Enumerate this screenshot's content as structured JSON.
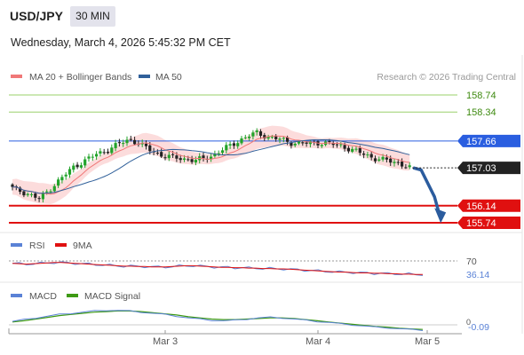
{
  "header": {
    "symbol": "USD/JPY",
    "interval": "30 MIN",
    "datetime": "Wednesday, March 4, 2026 5:45:32 PM CET"
  },
  "colors": {
    "candle_up": "#22a32a",
    "candle_down": "#222222",
    "ma20": "#f07878",
    "band_fill": "#fcdcdc",
    "ma50": "#30609a",
    "support": "#e01010",
    "resistance": "#9ad06a",
    "pivot": "#2a5ee0",
    "arrow": "#2b5c9e",
    "current_bg": "#222222",
    "rsi": "#5a82d6",
    "rsi_ma": "#e01010",
    "macd": "#5a82d6",
    "macd_signal": "#3e9a14"
  },
  "chart_data": {
    "type": "candlestick",
    "legend": [
      {
        "name": "MA 20 + Bollinger Bands",
        "color": "#f07878"
      },
      {
        "name": "MA 50",
        "color": "#30609a"
      }
    ],
    "credit": "Research © 2026 Trading Central",
    "y_range": [
      155.6,
      159.0
    ],
    "levels": [
      {
        "value": 158.74,
        "label": "158.74",
        "kind": "resistance"
      },
      {
        "value": 158.34,
        "label": "158.34",
        "kind": "resistance"
      },
      {
        "value": 157.66,
        "label": "157.66",
        "kind": "pivot"
      },
      {
        "value": 156.14,
        "label": "156.14",
        "kind": "support"
      },
      {
        "value": 155.74,
        "label": "155.74",
        "kind": "support"
      }
    ],
    "current_price": {
      "value": 157.03,
      "label": "157.03"
    },
    "arrow_path": [
      [
        0,
        157.03
      ],
      [
        3,
        156.98
      ],
      [
        8,
        156.35
      ],
      [
        10,
        155.9
      ]
    ],
    "x_labels": [
      {
        "index": 35,
        "label": "Mar 3"
      },
      {
        "index": 83,
        "label": "Mar 4"
      },
      {
        "index": 114,
        "label": "Mar 5"
      }
    ],
    "candles_count": 105,
    "close_anchors": [
      [
        0,
        156.55
      ],
      [
        4,
        156.42
      ],
      [
        7,
        156.3
      ],
      [
        10,
        156.55
      ],
      [
        13,
        156.8
      ],
      [
        16,
        157.05
      ],
      [
        19,
        157.2
      ],
      [
        22,
        157.35
      ],
      [
        25,
        157.45
      ],
      [
        28,
        157.6
      ],
      [
        31,
        157.7
      ],
      [
        34,
        157.55
      ],
      [
        37,
        157.4
      ],
      [
        40,
        157.3
      ],
      [
        44,
        157.25
      ],
      [
        48,
        157.2
      ],
      [
        52,
        157.3
      ],
      [
        55,
        157.45
      ],
      [
        58,
        157.6
      ],
      [
        61,
        157.75
      ],
      [
        64,
        157.85
      ],
      [
        67,
        157.75
      ],
      [
        70,
        157.7
      ],
      [
        73,
        157.62
      ],
      [
        76,
        157.6
      ],
      [
        80,
        157.62
      ],
      [
        83,
        157.6
      ],
      [
        86,
        157.55
      ],
      [
        89,
        157.45
      ],
      [
        92,
        157.35
      ],
      [
        95,
        157.25
      ],
      [
        98,
        157.2
      ],
      [
        101,
        157.15
      ],
      [
        104,
        157.03
      ]
    ],
    "rsi": {
      "label": "RSI",
      "ma_label": "9MA",
      "level_label": "70",
      "value_label": "36.14",
      "values": [
        64,
        63,
        62,
        63,
        64,
        65,
        66,
        66,
        65,
        64,
        63,
        62,
        61,
        60,
        59,
        58,
        57,
        57,
        56,
        56,
        55,
        55,
        55,
        56,
        57,
        58,
        58,
        57,
        56,
        55,
        54,
        54,
        53,
        53,
        52,
        52,
        51,
        51,
        50,
        50,
        49,
        48,
        47,
        46,
        45,
        44,
        43,
        42,
        42,
        41,
        40,
        40,
        39,
        39,
        38,
        38,
        37,
        37,
        36,
        36
      ]
    },
    "macd": {
      "label": "MACD",
      "signal_label": "MACD Signal",
      "zero_label": "0",
      "value_label": "-0.09",
      "macd": [
        0.06,
        0.09,
        0.12,
        0.15,
        0.18,
        0.2,
        0.22,
        0.24,
        0.25,
        0.25,
        0.24,
        0.22,
        0.2,
        0.18,
        0.15,
        0.12,
        0.1,
        0.08,
        0.07,
        0.08,
        0.1,
        0.12,
        0.13,
        0.12,
        0.1,
        0.08,
        0.06,
        0.04,
        0.02,
        0.0,
        -0.02,
        -0.04,
        -0.05,
        -0.07,
        -0.08,
        -0.09
      ],
      "signal": [
        0.05,
        0.07,
        0.1,
        0.13,
        0.16,
        0.18,
        0.2,
        0.22,
        0.23,
        0.24,
        0.24,
        0.23,
        0.21,
        0.19,
        0.17,
        0.14,
        0.12,
        0.1,
        0.09,
        0.09,
        0.1,
        0.11,
        0.12,
        0.12,
        0.11,
        0.09,
        0.07,
        0.05,
        0.03,
        0.01,
        -0.01,
        -0.03,
        -0.04,
        -0.06,
        -0.07,
        -0.08
      ]
    }
  }
}
